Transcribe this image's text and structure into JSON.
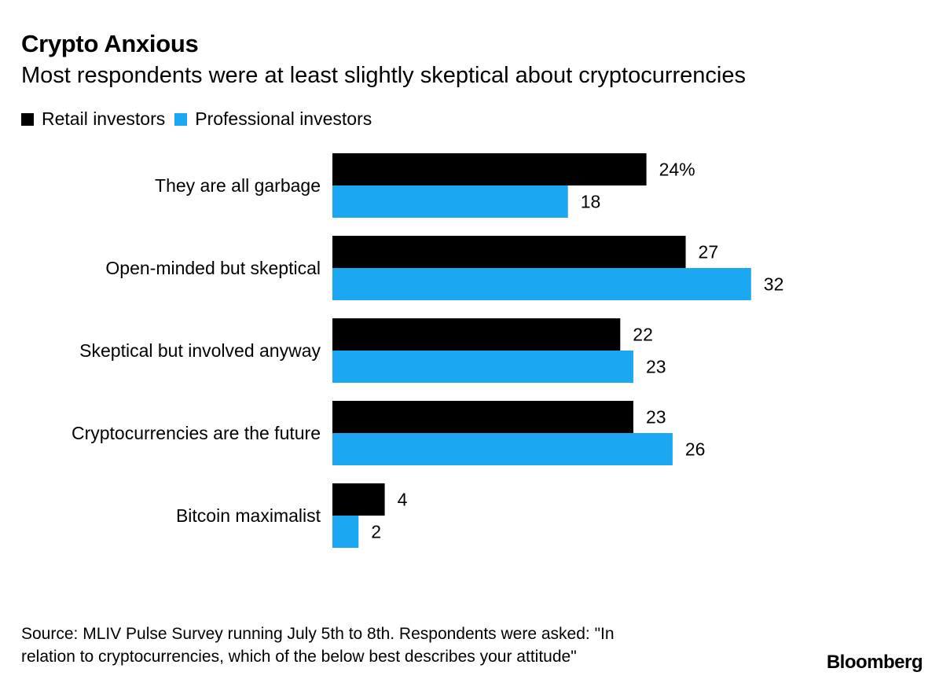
{
  "header": {
    "title": "Crypto Anxious",
    "subtitle": "Most respondents were at least slightly skeptical about cryptocurrencies"
  },
  "legend": [
    {
      "label": "Retail investors",
      "color": "#000000"
    },
    {
      "label": "Professional investors",
      "color": "#1ba7f1"
    }
  ],
  "chart_data": {
    "type": "bar",
    "orientation": "horizontal",
    "categories": [
      "They are all garbage",
      "Open-minded but skeptical",
      "Skeptical but involved anyway",
      "Cryptocurrencies are the future",
      "Bitcoin maximalist"
    ],
    "series": [
      {
        "name": "Retail investors",
        "color": "#000000",
        "values": [
          24,
          27,
          22,
          23,
          4
        ],
        "labels": [
          "24%",
          "27",
          "22",
          "23",
          "4"
        ]
      },
      {
        "name": "Professional investors",
        "color": "#1ba7f1",
        "values": [
          18,
          32,
          23,
          26,
          2
        ],
        "labels": [
          "18",
          "32",
          "23",
          "26",
          "2"
        ]
      }
    ],
    "unit": "%",
    "legend_position": "top-left",
    "grid": false
  },
  "footer": {
    "source_line1": "Source: MLIV Pulse Survey running July 5th to 8th. Respondents were asked: \"In",
    "source_line2": "relation to cryptocurrencies, which of the below best describes your attitude\"",
    "brand": "Bloomberg"
  }
}
